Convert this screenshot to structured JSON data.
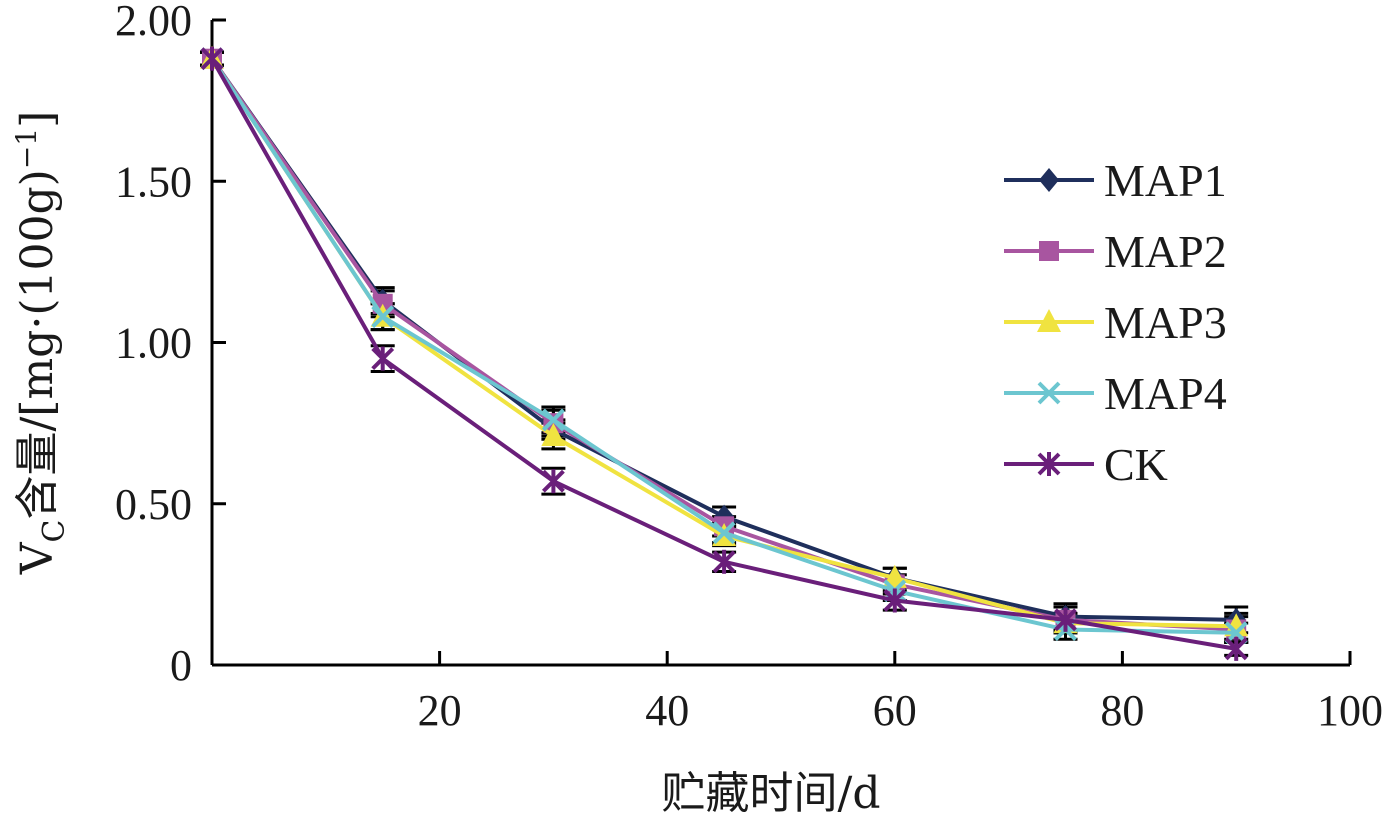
{
  "chart_data": {
    "type": "line",
    "xlabel": "贮藏时间/d",
    "ylabel": "VC含量/[mg·(100g)⁻¹]",
    "ylabel_parts": {
      "main": "V",
      "sub": "C",
      "rest": "含量/[mg·(100g)",
      "sup": "−1",
      "end": "]"
    },
    "xlim": [
      0,
      100
    ],
    "ylim": [
      0,
      2.0
    ],
    "x_ticks": [
      20,
      40,
      60,
      80,
      100
    ],
    "y_ticks": [
      0,
      0.5,
      1.0,
      1.5,
      2.0
    ],
    "y_tick_labels": [
      "0",
      "0.50",
      "1.00",
      "1.50",
      "2.00"
    ],
    "grid": false,
    "legend_position": "right",
    "x": [
      0,
      15,
      30,
      45,
      60,
      75,
      90
    ],
    "series": [
      {
        "name": "MAP1",
        "color": "#1f2f5c",
        "marker": "diamond",
        "values": [
          1.88,
          1.13,
          0.73,
          0.46,
          0.27,
          0.15,
          0.14
        ],
        "errors": [
          0.02,
          0.04,
          0.03,
          0.03,
          0.03,
          0.04,
          0.04
        ]
      },
      {
        "name": "MAP2",
        "color": "#a855a0",
        "marker": "square",
        "values": [
          1.88,
          1.12,
          0.75,
          0.43,
          0.25,
          0.14,
          0.11
        ],
        "errors": [
          0.02,
          0.04,
          0.04,
          0.03,
          0.03,
          0.04,
          0.04
        ]
      },
      {
        "name": "MAP3",
        "color": "#f0e340",
        "marker": "triangle",
        "values": [
          1.88,
          1.08,
          0.71,
          0.4,
          0.27,
          0.13,
          0.12
        ],
        "errors": [
          0.02,
          0.04,
          0.04,
          0.03,
          0.03,
          0.03,
          0.04
        ]
      },
      {
        "name": "MAP4",
        "color": "#6cc6d0",
        "marker": "x",
        "values": [
          1.88,
          1.08,
          0.76,
          0.41,
          0.23,
          0.11,
          0.1
        ],
        "errors": [
          0.02,
          0.04,
          0.04,
          0.03,
          0.03,
          0.03,
          0.03
        ]
      },
      {
        "name": "CK",
        "color": "#6a1f7a",
        "marker": "star",
        "values": [
          1.88,
          0.95,
          0.57,
          0.32,
          0.2,
          0.14,
          0.05
        ],
        "errors": [
          0.02,
          0.04,
          0.04,
          0.03,
          0.03,
          0.04,
          0.02
        ]
      }
    ]
  }
}
